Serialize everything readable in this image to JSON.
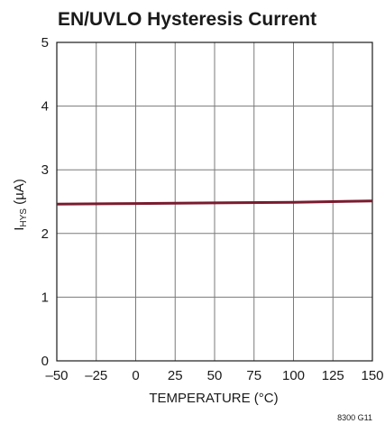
{
  "chart_data": {
    "type": "line",
    "title": "EN/UVLO Hysteresis Current",
    "xlabel": "TEMPERATURE (°C)",
    "ylabel": {
      "main": "I",
      "sub": "HYS",
      "rest": " (µA)"
    },
    "xlim": [
      -50,
      150
    ],
    "ylim": [
      0,
      5
    ],
    "x_ticks": [
      -50,
      -25,
      0,
      25,
      50,
      75,
      100,
      125,
      150
    ],
    "x_tick_labels": [
      "–50",
      "–25",
      "0",
      "25",
      "50",
      "75",
      "100",
      "125",
      "150"
    ],
    "y_ticks": [
      0,
      1,
      2,
      3,
      4,
      5
    ],
    "y_tick_labels": [
      "0",
      "1",
      "2",
      "3",
      "4",
      "5"
    ],
    "grid": true,
    "series": [
      {
        "color": "#7a1b2e",
        "x": [
          -50,
          0,
          50,
          100,
          150
        ],
        "y": [
          2.46,
          2.47,
          2.48,
          2.49,
          2.51
        ]
      }
    ],
    "figure_id": "8300 G11"
  }
}
